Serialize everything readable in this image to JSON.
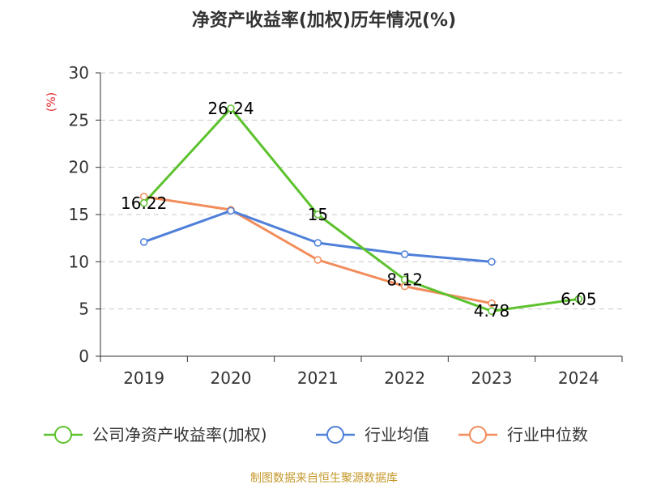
{
  "chart_data": {
    "type": "line",
    "title": "净资产收益率(加权)历年情况(%)",
    "xlabel": "",
    "ylabel": "(%)",
    "categories": [
      "2019",
      "2020",
      "2021",
      "2022",
      "2023",
      "2024"
    ],
    "ylim": [
      0,
      30
    ],
    "yticks": [
      "0",
      "5",
      "10",
      "15",
      "20",
      "25",
      "30"
    ],
    "grid": true,
    "legend_position": "bottom",
    "series": [
      {
        "name": "公司净资产收益率(加权)",
        "values": [
          16.22,
          26.24,
          15,
          8.12,
          4.78,
          6.05
        ],
        "labels": [
          "16.22",
          "26.24",
          "15",
          "8.12",
          "4.78",
          "6.05"
        ],
        "color": "#5cc22d"
      },
      {
        "name": "行业均值",
        "values": [
          12.1,
          15.4,
          12,
          10.8,
          10,
          null
        ],
        "color": "#4e7fd9"
      },
      {
        "name": "行业中位数",
        "values": [
          16.9,
          15.5,
          10.2,
          7.4,
          5.6,
          null
        ],
        "color": "#f28c5b"
      }
    ]
  },
  "source": "制图数据来自恒生聚源数据库"
}
